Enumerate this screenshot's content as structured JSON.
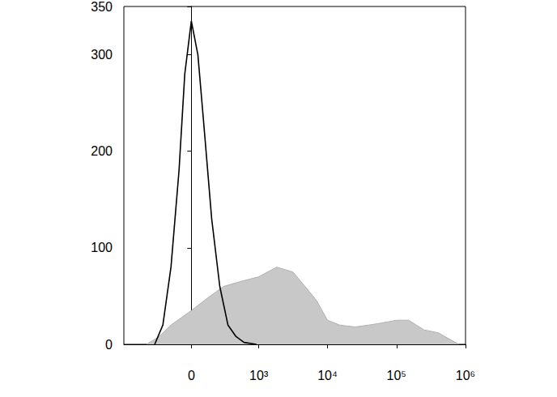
{
  "chart_data": {
    "type": "line",
    "xlim": [
      -1000,
      1000000
    ],
    "xticks": [
      0,
      {
        "value": 1000,
        "label": "10³"
      },
      {
        "value": 10000,
        "label": "10⁴"
      },
      {
        "value": 100000,
        "label": "10⁵"
      },
      {
        "value": 1000000,
        "label": "10⁶"
      }
    ],
    "ylim": [
      0,
      350
    ],
    "yticks": [
      0,
      100,
      200,
      300
    ],
    "grid": false,
    "series": [
      {
        "type": "area",
        "color": "#c8c8c8",
        "x": [
          -450,
          -277,
          -156,
          0,
          121,
          277,
          522,
          1000,
          1830,
          3150,
          5410,
          7000,
          10000,
          15000,
          25000,
          40000,
          60000,
          100000,
          150000,
          250000,
          400000,
          600000,
          800000
        ],
        "values": [
          0,
          8,
          20,
          35,
          48,
          60,
          65,
          70,
          80,
          75,
          55,
          45,
          25,
          20,
          18,
          20,
          22,
          25,
          25,
          15,
          12,
          5,
          0
        ]
      },
      {
        "type": "line",
        "color": "#000000",
        "x": [
          -330,
          -234,
          -156,
          -90,
          -47,
          0,
          47,
          90,
          156,
          234,
          330,
          450,
          600,
          920
        ],
        "values": [
          0,
          20,
          80,
          180,
          280,
          335,
          300,
          230,
          130,
          60,
          20,
          8,
          2,
          0
        ]
      }
    ]
  }
}
